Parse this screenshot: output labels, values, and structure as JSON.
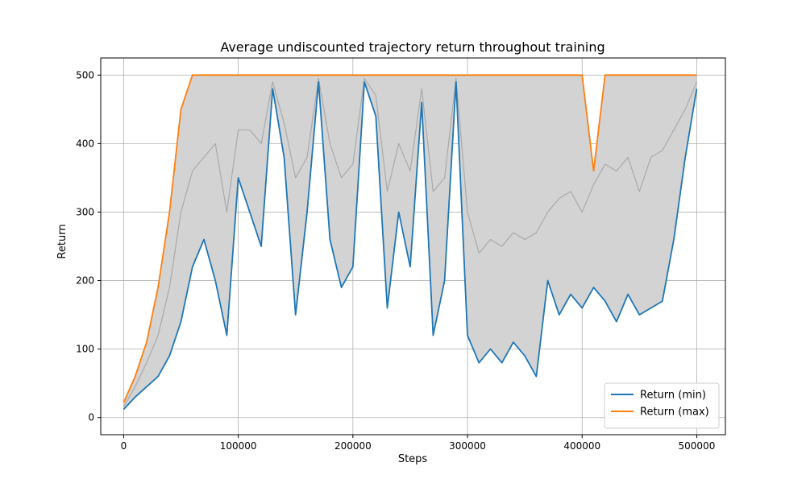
{
  "chart_data": {
    "type": "line",
    "title": "Average undiscounted trajectory return throughout training",
    "xlabel": "Steps",
    "ylabel": "Return",
    "xlim": [
      -20000,
      525000
    ],
    "ylim": [
      -25,
      525
    ],
    "xticks": [
      0,
      100000,
      200000,
      300000,
      400000,
      500000
    ],
    "xtick_labels": [
      "0",
      "100000",
      "200000",
      "300000",
      "400000",
      "500000"
    ],
    "yticks": [
      0,
      100,
      200,
      300,
      400,
      500
    ],
    "ytick_labels": [
      "0",
      "100",
      "200",
      "300",
      "400",
      "500"
    ],
    "grid": true,
    "legend_position": "lower-right",
    "x": [
      0,
      10000,
      20000,
      30000,
      40000,
      50000,
      60000,
      70000,
      80000,
      90000,
      100000,
      110000,
      120000,
      130000,
      140000,
      150000,
      160000,
      170000,
      180000,
      190000,
      200000,
      210000,
      220000,
      230000,
      240000,
      250000,
      260000,
      270000,
      280000,
      290000,
      300000,
      310000,
      320000,
      330000,
      340000,
      350000,
      360000,
      370000,
      380000,
      390000,
      400000,
      410000,
      420000,
      430000,
      440000,
      450000,
      460000,
      470000,
      480000,
      490000,
      500000
    ],
    "series": [
      {
        "name": "Return (min)",
        "color": "#1f77b4",
        "values": [
          12,
          30,
          45,
          60,
          90,
          140,
          220,
          260,
          200,
          120,
          350,
          300,
          250,
          480,
          380,
          150,
          300,
          490,
          260,
          190,
          220,
          490,
          440,
          160,
          300,
          220,
          460,
          120,
          200,
          490,
          120,
          80,
          100,
          80,
          110,
          90,
          60,
          200,
          150,
          180,
          160,
          190,
          170,
          140,
          180,
          150,
          160,
          170,
          260,
          380,
          480
        ]
      },
      {
        "name": "Return (max)",
        "color": "#ff7f0e",
        "values": [
          22,
          60,
          110,
          190,
          300,
          450,
          500,
          500,
          500,
          500,
          500,
          500,
          500,
          500,
          500,
          500,
          500,
          500,
          500,
          500,
          500,
          500,
          500,
          500,
          500,
          500,
          500,
          500,
          500,
          500,
          500,
          500,
          500,
          500,
          500,
          500,
          500,
          500,
          500,
          500,
          500,
          360,
          500,
          500,
          500,
          500,
          500,
          500,
          500,
          500,
          500
        ]
      },
      {
        "name": "",
        "color": "#aaaaaa",
        "values": [
          16,
          45,
          80,
          120,
          190,
          300,
          360,
          380,
          400,
          300,
          420,
          420,
          400,
          490,
          430,
          350,
          380,
          495,
          400,
          350,
          370,
          495,
          470,
          330,
          400,
          360,
          480,
          330,
          350,
          495,
          300,
          240,
          260,
          250,
          270,
          260,
          270,
          300,
          320,
          330,
          300,
          340,
          370,
          360,
          380,
          330,
          380,
          390,
          420,
          450,
          490
        ]
      }
    ],
    "band": {
      "lower_series": "Return (min)",
      "upper_series": "Return (max)",
      "color": "#d3d3d3"
    }
  }
}
